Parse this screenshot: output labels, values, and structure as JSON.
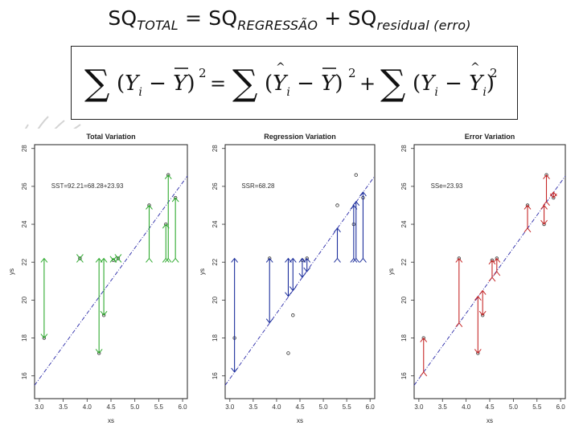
{
  "title": {
    "lhs": "SQ",
    "lhs_sub": "TOTAL",
    "eq": " = SQ",
    "reg_sub": "REGRESSÃO",
    "plus": " + SQ",
    "res_sub": "residual (erro)"
  },
  "equation": {
    "latex": "\\sum (Y_i - \\bar{Y})^2 = \\sum (\\hat{Y}_i - \\bar{Y})^2 + \\sum (Y_i - \\hat{Y}_i)^2"
  },
  "colors": {
    "total": "#2eaa2e",
    "regression": "#1c2e9c",
    "error": "#c62828",
    "fit_line": "#2a2aa8"
  },
  "chart_data": [
    {
      "type": "scatter",
      "title": "Total Variation",
      "annotation": "SST=92.21=68.28+23.93",
      "xlabel": "xs",
      "ylabel": "ys",
      "xlim": [
        2.9,
        6.1
      ],
      "ylim": [
        14.8,
        28.2
      ],
      "xticks": [
        "3.0",
        "3.5",
        "4.0",
        "4.5",
        "5.0",
        "5.5",
        "6.0"
      ],
      "yticks": [
        "28",
        "26",
        "24",
        "22",
        "20",
        "18",
        "16"
      ],
      "ymean": 22.2,
      "fit": {
        "intercept": 5.5,
        "slope": 3.45
      },
      "points": [
        [
          3.1,
          18.0
        ],
        [
          3.85,
          22.2
        ],
        [
          4.25,
          17.2
        ],
        [
          4.35,
          19.2
        ],
        [
          4.55,
          22.1
        ],
        [
          4.65,
          22.2
        ],
        [
          5.3,
          25.0
        ],
        [
          5.65,
          24.0
        ],
        [
          5.7,
          26.6
        ],
        [
          5.85,
          25.4
        ]
      ],
      "segments": [
        {
          "x": 3.1,
          "from": 22.2,
          "to": 18.0
        },
        {
          "x": 3.85,
          "from": 22.2,
          "to": 22.2
        },
        {
          "x": 4.25,
          "from": 22.2,
          "to": 17.2
        },
        {
          "x": 4.35,
          "from": 22.2,
          "to": 19.2
        },
        {
          "x": 4.55,
          "from": 22.2,
          "to": 22.1
        },
        {
          "x": 4.65,
          "from": 22.2,
          "to": 22.2
        },
        {
          "x": 5.3,
          "from": 22.2,
          "to": 25.0
        },
        {
          "x": 5.65,
          "from": 22.2,
          "to": 24.0
        },
        {
          "x": 5.7,
          "from": 22.2,
          "to": 26.6
        },
        {
          "x": 5.85,
          "from": 22.2,
          "to": 25.4
        }
      ]
    },
    {
      "type": "scatter",
      "title": "Regression Variation",
      "annotation": "SSR=68.28",
      "xlabel": "xs",
      "ylabel": "ys",
      "xlim": [
        2.9,
        6.1
      ],
      "ylim": [
        14.8,
        28.2
      ],
      "xticks": [
        "3.0",
        "3.5",
        "4.0",
        "4.5",
        "5.0",
        "5.5",
        "6.0"
      ],
      "yticks": [
        "28",
        "26",
        "24",
        "22",
        "20",
        "18",
        "16"
      ],
      "ymean": 22.2,
      "fit": {
        "intercept": 5.5,
        "slope": 3.45
      },
      "points": [
        [
          3.1,
          18.0
        ],
        [
          3.85,
          22.2
        ],
        [
          4.25,
          17.2
        ],
        [
          4.35,
          19.2
        ],
        [
          4.55,
          22.1
        ],
        [
          4.65,
          22.2
        ],
        [
          5.3,
          25.0
        ],
        [
          5.65,
          24.0
        ],
        [
          5.7,
          26.6
        ],
        [
          5.85,
          25.4
        ]
      ],
      "segments": [
        {
          "x": 3.1,
          "from": 22.2,
          "to": 16.2
        },
        {
          "x": 3.85,
          "from": 22.2,
          "to": 18.8
        },
        {
          "x": 4.25,
          "from": 22.2,
          "to": 20.2
        },
        {
          "x": 4.35,
          "from": 22.2,
          "to": 20.5
        },
        {
          "x": 4.55,
          "from": 22.2,
          "to": 21.2
        },
        {
          "x": 4.65,
          "from": 22.2,
          "to": 21.5
        },
        {
          "x": 5.3,
          "from": 22.2,
          "to": 23.8
        },
        {
          "x": 5.65,
          "from": 22.2,
          "to": 25.0
        },
        {
          "x": 5.7,
          "from": 22.2,
          "to": 25.2
        },
        {
          "x": 5.85,
          "from": 22.2,
          "to": 25.7
        }
      ]
    },
    {
      "type": "scatter",
      "title": "Error Variation",
      "annotation": "SSe=23.93",
      "xlabel": "xs",
      "ylabel": "ys",
      "xlim": [
        2.9,
        6.1
      ],
      "ylim": [
        14.8,
        28.2
      ],
      "xticks": [
        "3.0",
        "3.5",
        "4.0",
        "4.5",
        "5.0",
        "5.5",
        "6.0"
      ],
      "yticks": [
        "28",
        "26",
        "24",
        "22",
        "20",
        "18",
        "16"
      ],
      "fit": {
        "intercept": 5.5,
        "slope": 3.45
      },
      "points": [
        [
          3.1,
          18.0
        ],
        [
          3.85,
          22.2
        ],
        [
          4.25,
          17.2
        ],
        [
          4.35,
          19.2
        ],
        [
          4.55,
          22.1
        ],
        [
          4.65,
          22.2
        ],
        [
          5.3,
          25.0
        ],
        [
          5.65,
          24.0
        ],
        [
          5.7,
          26.6
        ],
        [
          5.85,
          25.4
        ]
      ],
      "segments": [
        {
          "x": 3.1,
          "from": 16.2,
          "to": 18.0
        },
        {
          "x": 3.85,
          "from": 18.8,
          "to": 22.2
        },
        {
          "x": 4.25,
          "from": 20.2,
          "to": 17.2
        },
        {
          "x": 4.35,
          "from": 20.5,
          "to": 19.2
        },
        {
          "x": 4.55,
          "from": 21.2,
          "to": 22.1
        },
        {
          "x": 4.65,
          "from": 21.5,
          "to": 22.2
        },
        {
          "x": 5.3,
          "from": 23.8,
          "to": 25.0
        },
        {
          "x": 5.65,
          "from": 25.0,
          "to": 24.0
        },
        {
          "x": 5.7,
          "from": 25.2,
          "to": 26.6
        },
        {
          "x": 5.85,
          "from": 25.7,
          "to": 25.4
        }
      ]
    }
  ]
}
